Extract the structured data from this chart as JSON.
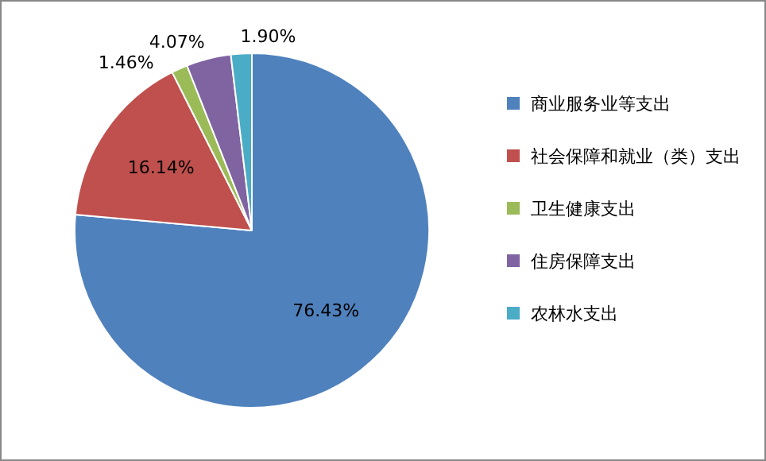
{
  "chart_data": {
    "type": "pie",
    "categories": [
      "商业服务业等支出",
      "社会保障和就业（类）支出",
      "卫生健康支出",
      "住房保障支出",
      "农林水支出"
    ],
    "values": [
      76.43,
      16.14,
      1.46,
      4.07,
      1.9
    ],
    "colors": [
      "#4f81bd",
      "#c0504d",
      "#9bbb59",
      "#8064a2",
      "#4bacc6"
    ],
    "value_labels": [
      "76.43%",
      "16.14%",
      "1.46%",
      "4.07%",
      "1.90%"
    ],
    "legend": "right"
  }
}
